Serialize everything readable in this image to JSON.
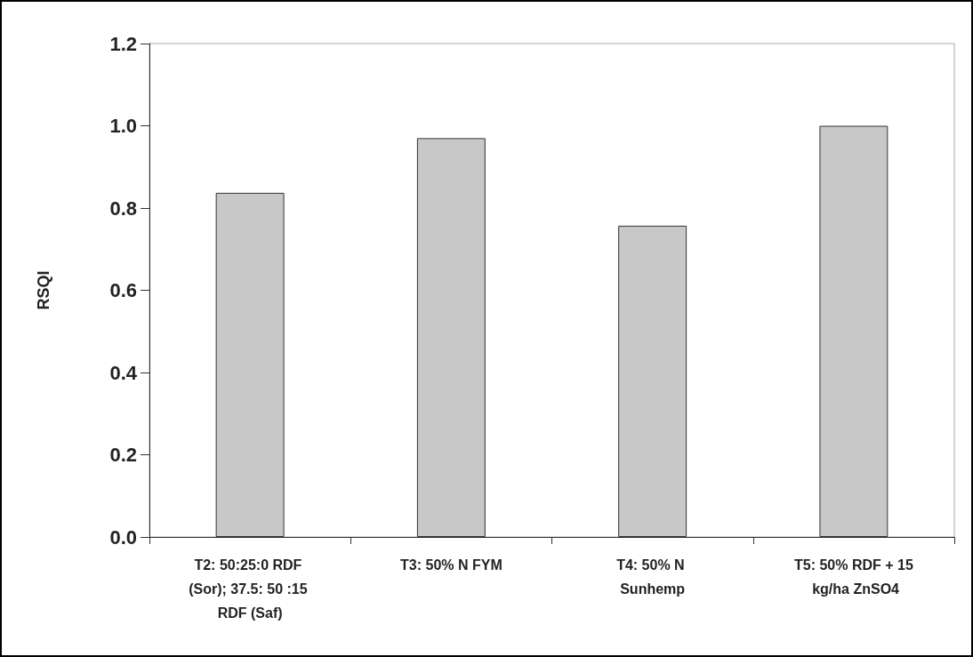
{
  "chart_data": {
    "type": "bar",
    "ylabel": "RSQI",
    "categories": [
      "T2: 50:25:0 RDF (Sor); 37.5: 50 :15 RDF (Saf)",
      "T3: 50% N FYM",
      "T4: 50% N Sunhemp",
      "T5: 50% RDF + 15 kg/ha ZnSO4"
    ],
    "values": [
      0.837,
      0.97,
      0.757,
      1.0
    ],
    "color": "#c8c8c8",
    "ylim": [
      0,
      1.2
    ],
    "yticks": [
      {
        "value": 0,
        "label": "0.0"
      },
      0.2,
      0.4,
      0.6,
      0.8,
      {
        "value": 1,
        "label": "1.0"
      },
      1.2
    ],
    "grid": false
  }
}
